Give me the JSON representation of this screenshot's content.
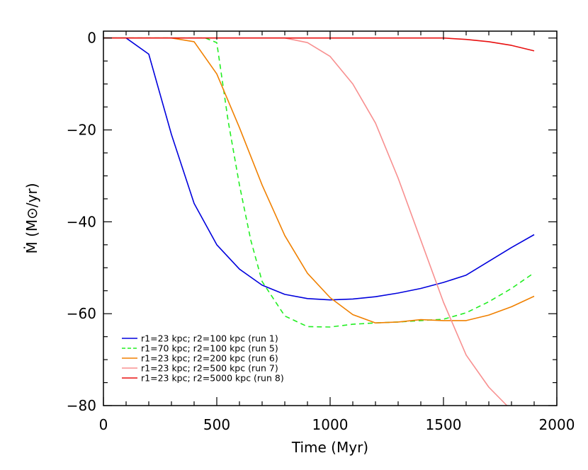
{
  "chart_data": {
    "type": "line",
    "xlabel": "Time (Myr)",
    "ylabel": "Ṁ (M⊙/yr)",
    "xlim": [
      0,
      2000
    ],
    "ylim": [
      -80,
      1.5
    ],
    "xticks": [
      0,
      500,
      1000,
      1500,
      2000
    ],
    "yticks": [
      0,
      -20,
      -40,
      -60,
      -80
    ],
    "xtick_labels": [
      "0",
      "500",
      "1000",
      "1500",
      "2000"
    ],
    "ytick_labels": [
      "0",
      "−20",
      "−40",
      "−60",
      "−80"
    ],
    "grid": false,
    "legend_position": "bottom-left",
    "series": [
      {
        "name": "r1=23 kpc; r2=100 kpc (run 1)",
        "color": "#0000dd",
        "dash": "solid",
        "x": [
          0,
          100,
          200,
          300,
          400,
          500,
          600,
          700,
          800,
          900,
          1000,
          1100,
          1200,
          1300,
          1400,
          1500,
          1600,
          1700,
          1800,
          1900
        ],
        "y": [
          0,
          0,
          -3.5,
          -21,
          -36,
          -45,
          -50.3,
          -53.8,
          -55.8,
          -56.7,
          -57.0,
          -56.8,
          -56.3,
          -55.5,
          -54.5,
          -53.2,
          -51.6,
          -48.6,
          -45.6,
          -42.8
        ]
      },
      {
        "name": "r1=70 kpc; r2=100 kpc (run 5)",
        "color": "#22ee22",
        "dash": "dashed",
        "x": [
          0,
          400,
          450,
          500,
          550,
          600,
          650,
          700,
          800,
          900,
          1000,
          1100,
          1200,
          1300,
          1400,
          1500,
          1600,
          1700,
          1800,
          1900
        ],
        "y": [
          0,
          0,
          0,
          -1,
          -18,
          -32,
          -44,
          -53,
          -60.5,
          -62.8,
          -62.9,
          -62.3,
          -62.0,
          -61.8,
          -61.5,
          -61.2,
          -59.8,
          -57.4,
          -54.5,
          -51.1
        ]
      },
      {
        "name": "r1=23 kpc; r2=200 kpc (run 6)",
        "color": "#f08000",
        "dash": "solid",
        "x": [
          0,
          300,
          400,
          500,
          600,
          700,
          800,
          900,
          1000,
          1100,
          1200,
          1300,
          1400,
          1500,
          1600,
          1700,
          1800,
          1900
        ],
        "y": [
          0,
          0,
          -0.8,
          -7.8,
          -19.5,
          -32,
          -43,
          -51.2,
          -56.5,
          -60.2,
          -62.0,
          -61.8,
          -61.3,
          -61.5,
          -61.5,
          -60.3,
          -58.5,
          -56.2
        ]
      },
      {
        "name": "r1=23 kpc; r2=500 kpc (run 7)",
        "color": "#f89090",
        "dash": "solid",
        "x": [
          0,
          800,
          900,
          1000,
          1100,
          1200,
          1300,
          1400,
          1500,
          1600,
          1700,
          1780
        ],
        "y": [
          0,
          0,
          -1.0,
          -4.0,
          -10.0,
          -18.5,
          -30.5,
          -44.0,
          -57.5,
          -69.0,
          -76.0,
          -80.0
        ]
      },
      {
        "name": "r1=23 kpc; r2=5000 kpc (run 8)",
        "color": "#e81010",
        "dash": "solid",
        "x": [
          0,
          1400,
          1500,
          1600,
          1700,
          1800,
          1900
        ],
        "y": [
          0,
          0,
          0,
          -0.3,
          -0.8,
          -1.6,
          -2.8
        ]
      }
    ]
  }
}
